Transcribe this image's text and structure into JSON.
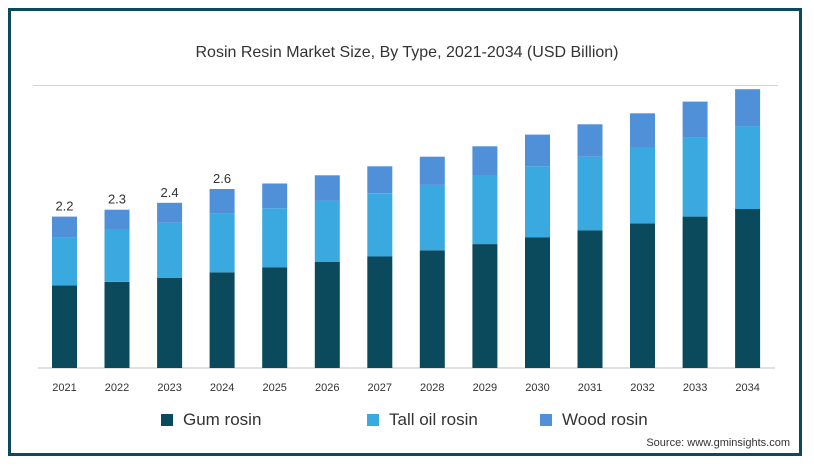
{
  "chart_data": {
    "type": "bar",
    "stacked": true,
    "title": "Rosin Resin Market Size, By Type, 2021-2034 (USD Billion)",
    "categories": [
      "2021",
      "2022",
      "2023",
      "2024",
      "2025",
      "2026",
      "2027",
      "2028",
      "2029",
      "2030",
      "2031",
      "2032",
      "2033",
      "2034"
    ],
    "series": [
      {
        "name": "Gum rosin",
        "color": "#0b4a5c",
        "values": [
          1.2,
          1.25,
          1.31,
          1.39,
          1.46,
          1.54,
          1.62,
          1.71,
          1.8,
          1.9,
          2.0,
          2.1,
          2.2,
          2.31
        ]
      },
      {
        "name": "Tall oil rosin",
        "color": "#3aa9e0",
        "values": [
          0.7,
          0.76,
          0.8,
          0.85,
          0.86,
          0.89,
          0.92,
          0.95,
          0.99,
          1.03,
          1.07,
          1.11,
          1.15,
          1.2
        ]
      },
      {
        "name": "Wood rosin",
        "color": "#4f90d9",
        "values": [
          0.3,
          0.29,
          0.29,
          0.36,
          0.36,
          0.37,
          0.39,
          0.41,
          0.43,
          0.46,
          0.47,
          0.49,
          0.52,
          0.54
        ]
      }
    ],
    "totals_labels": [
      "2.2",
      "2.3",
      "2.4",
      "2.6"
    ],
    "ylim": [
      0,
      4.3
    ],
    "grid": false,
    "legend_position": "bottom"
  },
  "source": "Source: www.gminsights.com"
}
